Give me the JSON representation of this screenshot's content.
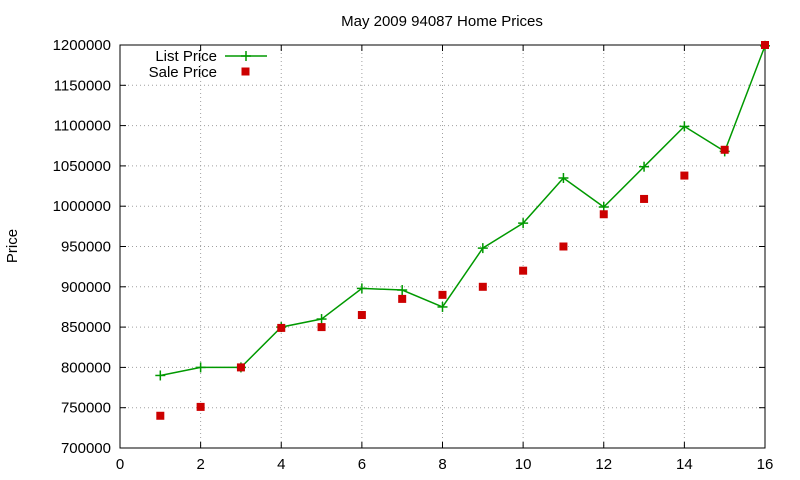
{
  "chart_data": {
    "type": "line",
    "title": "May 2009 94087 Home Prices",
    "xlabel": "",
    "ylabel": "Price",
    "xlim": [
      0,
      16
    ],
    "ylim": [
      700000,
      1200000
    ],
    "xticks": [
      0,
      2,
      4,
      6,
      8,
      10,
      12,
      14,
      16
    ],
    "yticks": [
      700000,
      750000,
      800000,
      850000,
      900000,
      950000,
      1000000,
      1050000,
      1100000,
      1150000,
      1200000
    ],
    "grid": true,
    "legend_position": "top-left",
    "series": [
      {
        "name": "List Price",
        "style": "line-with-plus-markers",
        "color": "#009900",
        "x": [
          1,
          2,
          3,
          4,
          5,
          6,
          7,
          8,
          9,
          10,
          11,
          12,
          13,
          14,
          15,
          16
        ],
        "y": [
          790000,
          800000,
          800000,
          850000,
          860000,
          898000,
          896000,
          875000,
          948000,
          979000,
          1035000,
          999000,
          1049000,
          1099000,
          1068000,
          1199000
        ]
      },
      {
        "name": "Sale Price",
        "style": "square-markers",
        "color": "#cc0000",
        "x": [
          1,
          2,
          3,
          4,
          5,
          6,
          7,
          8,
          9,
          10,
          11,
          12,
          13,
          14,
          15,
          16
        ],
        "y": [
          740000,
          751000,
          800000,
          849000,
          850000,
          865000,
          885000,
          890000,
          900000,
          920000,
          950000,
          990000,
          1009000,
          1038000,
          1070000,
          1200000
        ]
      }
    ]
  }
}
